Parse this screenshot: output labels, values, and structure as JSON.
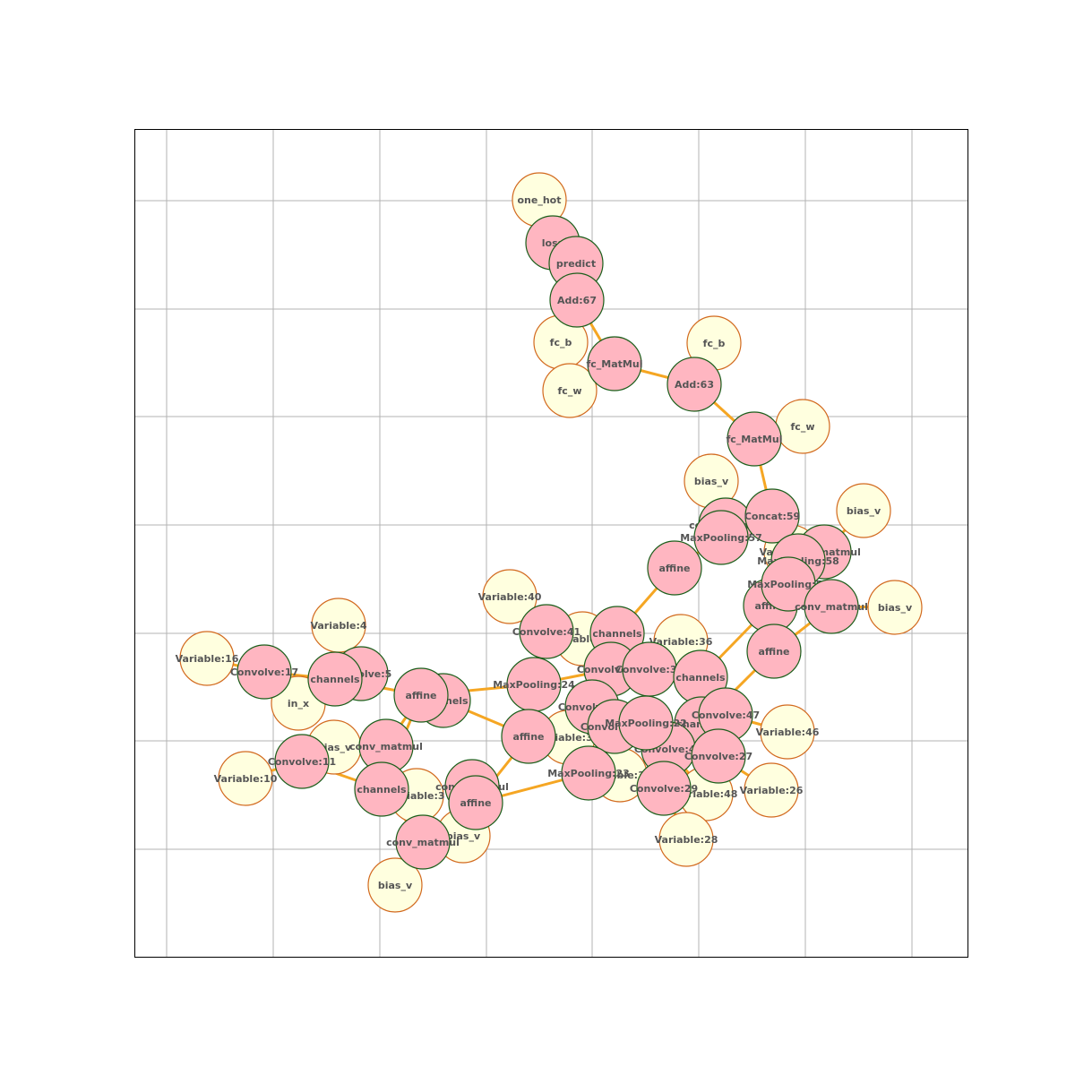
{
  "colors": {
    "op_fill": "#ffb6c1",
    "op_stroke": "#1a5e1a",
    "var_fill": "#ffffdf",
    "var_stroke": "#d2691e",
    "edge": "#f5a623",
    "grid": "#b3b3b3",
    "frame": "#000000",
    "label": "#555555"
  },
  "nodes": [
    {
      "id": "n_one_hot",
      "label": "one_hot",
      "kind": "var"
    },
    {
      "id": "n_loss",
      "label": "loss",
      "kind": "op"
    },
    {
      "id": "n_predict",
      "label": "predict",
      "kind": "op"
    },
    {
      "id": "n_add67",
      "label": "Add:67",
      "kind": "op"
    },
    {
      "id": "n_fcb1",
      "label": "fc_b",
      "kind": "var"
    },
    {
      "id": "n_fcmatmul1",
      "label": "fc_MatMul",
      "kind": "op"
    },
    {
      "id": "n_fcw1",
      "label": "fc_w",
      "kind": "var"
    },
    {
      "id": "n_fcb2",
      "label": "fc_b",
      "kind": "var"
    },
    {
      "id": "n_add63",
      "label": "Add:63",
      "kind": "op"
    },
    {
      "id": "n_fcmatmul2",
      "label": "fc_MatMul",
      "kind": "op"
    },
    {
      "id": "n_fcw2",
      "label": "fc_w",
      "kind": "var"
    },
    {
      "id": "n_biasv_a",
      "label": "bias_v",
      "kind": "var"
    },
    {
      "id": "n_biasv_b",
      "label": "bias_v",
      "kind": "var"
    },
    {
      "id": "n_convmat_a",
      "label": "conv_matmul",
      "kind": "op"
    },
    {
      "id": "n_concat59",
      "label": "Concat:59",
      "kind": "op"
    },
    {
      "id": "n_maxpool57",
      "label": "MaxPooling:57",
      "kind": "op"
    },
    {
      "id": "n_var25",
      "label": "Variable:25",
      "kind": "var"
    },
    {
      "id": "n_convmat_b",
      "label": "conv_matmul",
      "kind": "op"
    },
    {
      "id": "n_maxpool58",
      "label": "MaxPooling:58",
      "kind": "op"
    },
    {
      "id": "n_affine_a",
      "label": "affine",
      "kind": "op"
    },
    {
      "id": "n_maxpool56",
      "label": "MaxPooling:56",
      "kind": "op"
    },
    {
      "id": "n_affine_b",
      "label": "affine",
      "kind": "op"
    },
    {
      "id": "n_convmat_c",
      "label": "conv_matmul",
      "kind": "op"
    },
    {
      "id": "n_biasv_c",
      "label": "bias_v",
      "kind": "var"
    },
    {
      "id": "n_affine_c",
      "label": "affine",
      "kind": "op"
    },
    {
      "id": "n_var40",
      "label": "Variable:40",
      "kind": "var"
    },
    {
      "id": "n_var50",
      "label": "Variable:50",
      "kind": "var"
    },
    {
      "id": "n_conv41",
      "label": "Convolve:41",
      "kind": "op"
    },
    {
      "id": "n_channels_a",
      "label": "channels",
      "kind": "op"
    },
    {
      "id": "n_var36",
      "label": "Variable:36",
      "kind": "var"
    },
    {
      "id": "n_conv35",
      "label": "Convolve:35",
      "kind": "op"
    },
    {
      "id": "n_conv37",
      "label": "Convolve:37",
      "kind": "op"
    },
    {
      "id": "n_channels_b",
      "label": "channels",
      "kind": "op"
    },
    {
      "id": "n_maxpool24",
      "label": "MaxPooling:24",
      "kind": "op"
    },
    {
      "id": "n_conv39",
      "label": "Convolve:39",
      "kind": "op"
    },
    {
      "id": "n_var38",
      "label": "Variable:38",
      "kind": "var"
    },
    {
      "id": "n_affine_d",
      "label": "affine",
      "kind": "op"
    },
    {
      "id": "n_conv31",
      "label": "Convolve:31",
      "kind": "op"
    },
    {
      "id": "n_maxpool23",
      "label": "MaxPooling:23",
      "kind": "op"
    },
    {
      "id": "n_channels_c",
      "label": "channels",
      "kind": "op"
    },
    {
      "id": "n_conv47",
      "label": "Convolve:47",
      "kind": "op"
    },
    {
      "id": "n_var46",
      "label": "Variable:46",
      "kind": "var"
    },
    {
      "id": "n_conv49",
      "label": "Convolve:49",
      "kind": "op"
    },
    {
      "id": "n_conv27",
      "label": "Convolve:27",
      "kind": "op"
    },
    {
      "id": "n_var30",
      "label": "Variable:30",
      "kind": "var"
    },
    {
      "id": "n_maxpool22",
      "label": "MaxPooling:22",
      "kind": "op"
    },
    {
      "id": "n_conv29",
      "label": "Convolve:29",
      "kind": "op"
    },
    {
      "id": "n_var48",
      "label": "Variable:48",
      "kind": "var"
    },
    {
      "id": "n_var26",
      "label": "Variable:26",
      "kind": "var"
    },
    {
      "id": "n_var28",
      "label": "Variable:28",
      "kind": "var"
    },
    {
      "id": "n_var4",
      "label": "Variable:4",
      "kind": "var"
    },
    {
      "id": "n_var16",
      "label": "Variable:16",
      "kind": "var"
    },
    {
      "id": "n_conv17",
      "label": "Convolve:17",
      "kind": "op"
    },
    {
      "id": "n_conv5",
      "label": "Convolve:5",
      "kind": "op"
    },
    {
      "id": "n_channels_d",
      "label": "channels",
      "kind": "op"
    },
    {
      "id": "n_in_x",
      "label": "in_x",
      "kind": "var"
    },
    {
      "id": "n_channels_e",
      "label": "channels",
      "kind": "op"
    },
    {
      "id": "n_affine_e",
      "label": "affine",
      "kind": "op"
    },
    {
      "id": "n_biasv_d",
      "label": "bias_v",
      "kind": "var"
    },
    {
      "id": "n_convmat_d",
      "label": "conv_matmul",
      "kind": "op"
    },
    {
      "id": "n_conv11",
      "label": "Convolve:11",
      "kind": "op"
    },
    {
      "id": "n_var10",
      "label": "Variable:10",
      "kind": "var"
    },
    {
      "id": "n_channels_f",
      "label": "channels",
      "kind": "op"
    },
    {
      "id": "n_var3",
      "label": "Variable:3",
      "kind": "var"
    },
    {
      "id": "n_biasv_e",
      "label": "bias_v",
      "kind": "var"
    },
    {
      "id": "n_convmat_e",
      "label": "conv_matmul",
      "kind": "op"
    },
    {
      "id": "n_affine_f",
      "label": "affine",
      "kind": "op"
    },
    {
      "id": "n_convmat_f",
      "label": "conv_matmul",
      "kind": "op"
    },
    {
      "id": "n_biasv_f",
      "label": "bias_v",
      "kind": "var"
    }
  ],
  "edges": [
    [
      "n_one_hot",
      "n_loss"
    ],
    [
      "n_loss",
      "n_predict"
    ],
    [
      "n_predict",
      "n_add67"
    ],
    [
      "n_add67",
      "n_fcb1"
    ],
    [
      "n_add67",
      "n_fcmatmul1"
    ],
    [
      "n_fcmatmul1",
      "n_fcw1"
    ],
    [
      "n_fcmatmul1",
      "n_add63"
    ],
    [
      "n_add63",
      "n_fcb2"
    ],
    [
      "n_add63",
      "n_fcmatmul2"
    ],
    [
      "n_fcmatmul2",
      "n_fcw2"
    ],
    [
      "n_fcmatmul2",
      "n_concat59"
    ],
    [
      "n_concat59",
      "n_maxpool57"
    ],
    [
      "n_concat59",
      "n_maxpool58"
    ],
    [
      "n_concat59",
      "n_maxpool56"
    ],
    [
      "n_maxpool57",
      "n_convmat_a"
    ],
    [
      "n_convmat_a",
      "n_biasv_a"
    ],
    [
      "n_maxpool57",
      "n_affine_c"
    ],
    [
      "n_affine_c",
      "n_channels_a"
    ],
    [
      "n_maxpool58",
      "n_convmat_b"
    ],
    [
      "n_convmat_b",
      "n_biasv_b"
    ],
    [
      "n_maxpool58",
      "n_var25"
    ],
    [
      "n_maxpool56",
      "n_affine_a"
    ],
    [
      "n_affine_a",
      "n_channels_b"
    ],
    [
      "n_maxpool56",
      "n_affine_b"
    ],
    [
      "n_affine_b",
      "n_convmat_c"
    ],
    [
      "n_convmat_c",
      "n_biasv_c"
    ],
    [
      "n_affine_b",
      "n_channels_c"
    ],
    [
      "n_channels_a",
      "n_conv35"
    ],
    [
      "n_conv41",
      "n_var40"
    ],
    [
      "n_conv41",
      "n_var50"
    ],
    [
      "n_channels_b",
      "n_conv37"
    ],
    [
      "n_conv37",
      "n_var36"
    ],
    [
      "n_channels_c",
      "n_conv47"
    ],
    [
      "n_conv47",
      "n_var46"
    ],
    [
      "n_channels_c",
      "n_conv49"
    ],
    [
      "n_conv49",
      "n_var48"
    ],
    [
      "n_conv35",
      "n_maxpool24"
    ],
    [
      "n_maxpool24",
      "n_affine_e"
    ],
    [
      "n_maxpool24",
      "n_conv41"
    ],
    [
      "n_conv39",
      "n_var38"
    ],
    [
      "n_conv39",
      "n_maxpool22"
    ],
    [
      "n_conv31",
      "n_var30"
    ],
    [
      "n_conv31",
      "n_maxpool23"
    ],
    [
      "n_maxpool22",
      "n_conv27"
    ],
    [
      "n_conv27",
      "n_var26"
    ],
    [
      "n_maxpool22",
      "n_conv29"
    ],
    [
      "n_conv29",
      "n_var28"
    ],
    [
      "n_maxpool23",
      "n_affine_f"
    ],
    [
      "n_affine_f",
      "n_convmat_e"
    ],
    [
      "n_convmat_e",
      "n_biasv_e"
    ],
    [
      "n_affine_f",
      "n_affine_d"
    ],
    [
      "n_affine_d",
      "n_channels_e"
    ],
    [
      "n_affine_d",
      "n_maxpool24"
    ],
    [
      "n_affine_e",
      "n_channels_d"
    ],
    [
      "n_affine_e",
      "n_channels_f"
    ],
    [
      "n_affine_e",
      "n_convmat_d"
    ],
    [
      "n_convmat_d",
      "n_biasv_d"
    ],
    [
      "n_channels_d",
      "n_conv17"
    ],
    [
      "n_conv17",
      "n_var16"
    ],
    [
      "n_channels_d",
      "n_conv5"
    ],
    [
      "n_conv5",
      "n_var4"
    ],
    [
      "n_channels_d",
      "n_in_x"
    ],
    [
      "n_channels_f",
      "n_conv11"
    ],
    [
      "n_conv11",
      "n_var10"
    ],
    [
      "n_channels_f",
      "n_var3"
    ],
    [
      "n_channels_f",
      "n_convmat_f"
    ],
    [
      "n_convmat_f",
      "n_biasv_f"
    ]
  ]
}
